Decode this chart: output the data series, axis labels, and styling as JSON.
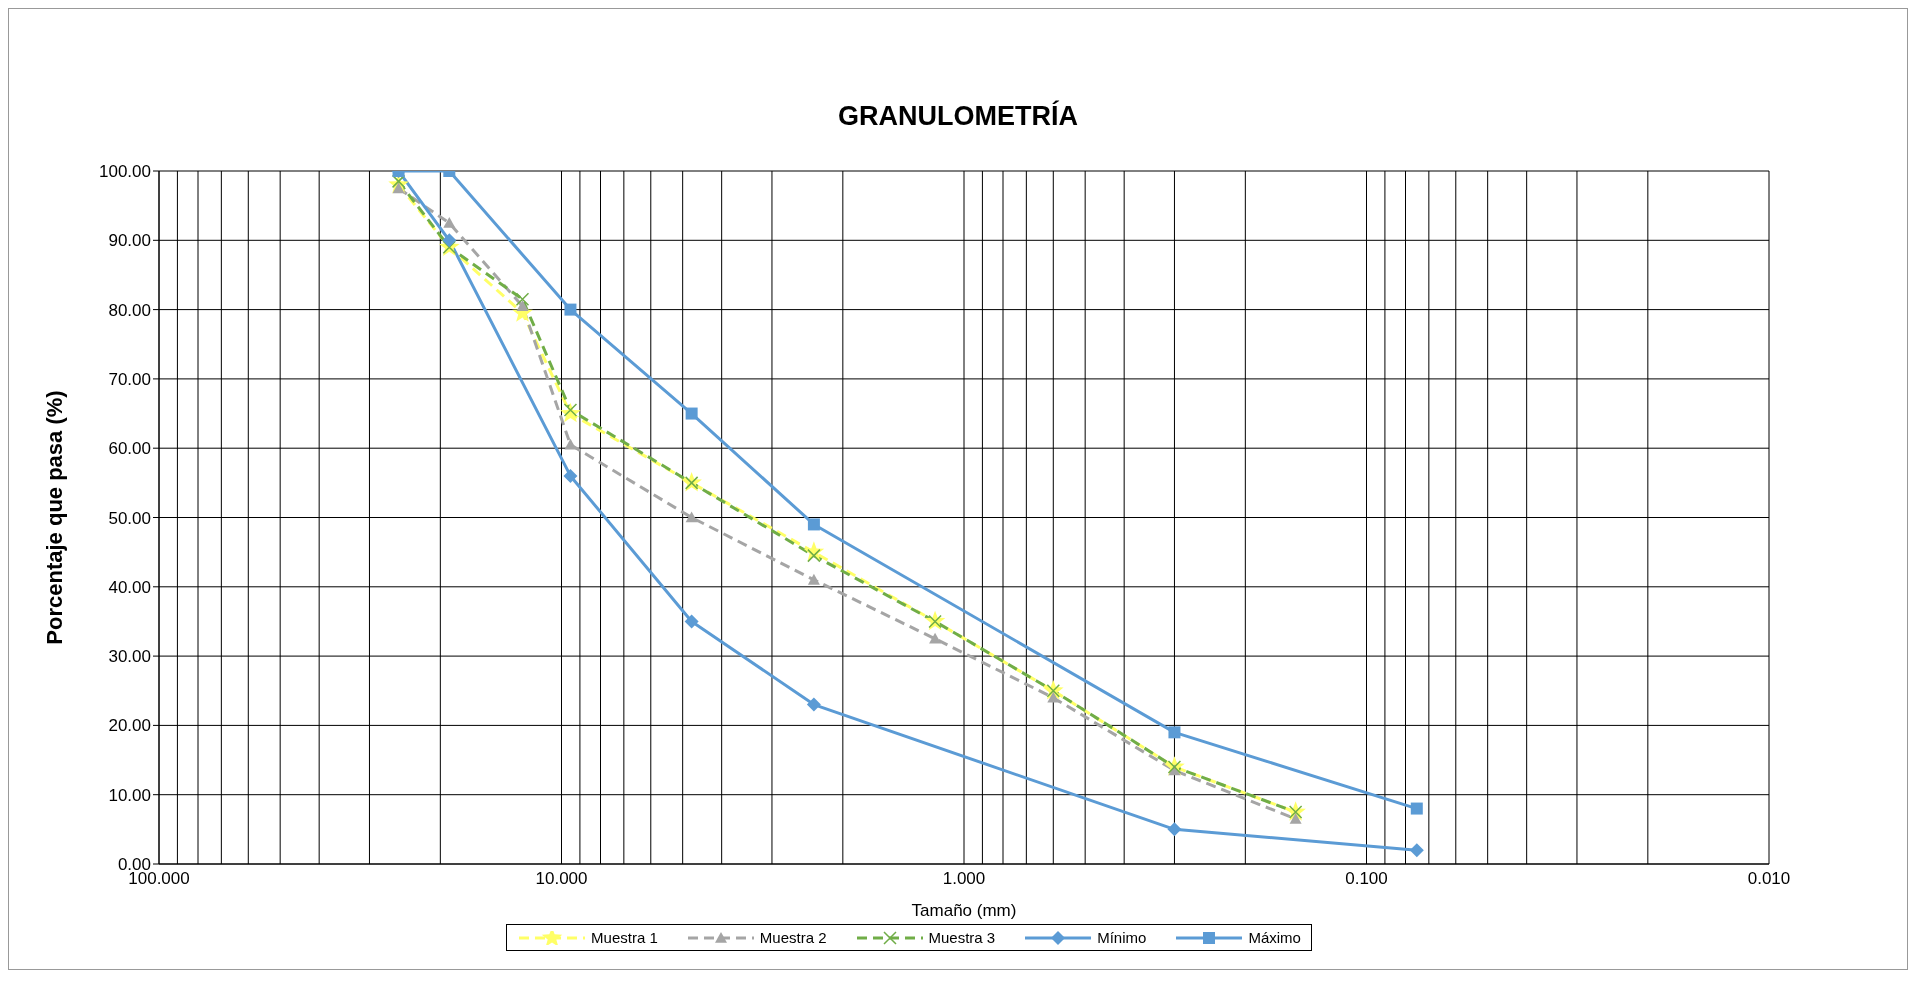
{
  "chart_data": {
    "type": "line",
    "title": "GRANULOMETRÍA",
    "xlabel": "Tamaño (mm)",
    "ylabel": "Porcentaje que pasa (%)",
    "log": "x",
    "xlim": [
      100,
      0.01
    ],
    "xticks": [
      {
        "value": 100,
        "label": "100.000"
      },
      {
        "value": 90,
        "label": null
      },
      {
        "value": 80,
        "label": null
      },
      {
        "value": 70,
        "label": null
      },
      {
        "value": 60,
        "label": null
      },
      {
        "value": 50,
        "label": null
      },
      {
        "value": 40,
        "label": null
      },
      {
        "value": 30,
        "label": null
      },
      {
        "value": 20,
        "label": null
      },
      {
        "value": 10,
        "label": "10.000"
      },
      {
        "value": 9,
        "label": null
      },
      {
        "value": 8,
        "label": null
      },
      {
        "value": 7,
        "label": null
      },
      {
        "value": 6,
        "label": null
      },
      {
        "value": 5,
        "label": null
      },
      {
        "value": 4,
        "label": null
      },
      {
        "value": 3,
        "label": null
      },
      {
        "value": 2,
        "label": null
      },
      {
        "value": 1,
        "label": "1.000"
      },
      {
        "value": 0.9,
        "label": null
      },
      {
        "value": 0.8,
        "label": null
      },
      {
        "value": 0.7,
        "label": null
      },
      {
        "value": 0.6,
        "label": null
      },
      {
        "value": 0.5,
        "label": null
      },
      {
        "value": 0.4,
        "label": null
      },
      {
        "value": 0.3,
        "label": null
      },
      {
        "value": 0.2,
        "label": null
      },
      {
        "value": 0.1,
        "label": "0.100"
      },
      {
        "value": 0.09,
        "label": null
      },
      {
        "value": 0.08,
        "label": null
      },
      {
        "value": 0.07,
        "label": null
      },
      {
        "value": 0.06,
        "label": null
      },
      {
        "value": 0.05,
        "label": null
      },
      {
        "value": 0.04,
        "label": null
      },
      {
        "value": 0.03,
        "label": null
      },
      {
        "value": 0.02,
        "label": null
      },
      {
        "value": 0.01,
        "label": "0.010"
      }
    ],
    "ylim": [
      0,
      100
    ],
    "yticks": [
      {
        "value": 0,
        "label": "0.00"
      },
      {
        "value": 10,
        "label": "10.00"
      },
      {
        "value": 20,
        "label": "20.00"
      },
      {
        "value": 30,
        "label": "30.00"
      },
      {
        "value": 40,
        "label": "40.00"
      },
      {
        "value": 50,
        "label": "50.00"
      },
      {
        "value": 60,
        "label": "60.00"
      },
      {
        "value": 70,
        "label": "70.00"
      },
      {
        "value": 80,
        "label": "80.00"
      },
      {
        "value": 90,
        "label": "90.00"
      },
      {
        "value": 100,
        "label": "100.00"
      }
    ],
    "grid": true,
    "legend": "bottom",
    "series": [
      {
        "name": "Muestra 1",
        "color": "#ffff66",
        "marker": "star",
        "line_style": "dashed",
        "x": [
          25.4,
          19.0,
          12.5,
          9.5,
          4.75,
          2.36,
          1.18,
          0.6,
          0.3,
          0.15
        ],
        "values": [
          98,
          89,
          79.5,
          65,
          55,
          45,
          35,
          25,
          14,
          7.5
        ]
      },
      {
        "name": "Muestra 2",
        "color": "#a5a5a5",
        "marker": "triangle",
        "line_style": "dashed",
        "x": [
          25.4,
          19.0,
          12.5,
          9.5,
          4.75,
          2.36,
          1.18,
          0.6,
          0.3,
          0.15
        ],
        "values": [
          97.5,
          92.5,
          80.5,
          60.5,
          50,
          41,
          32.5,
          24,
          13.5,
          6.5
        ]
      },
      {
        "name": "Muestra 3",
        "color": "#70ad47",
        "marker": "cross",
        "line_style": "dashed",
        "x": [
          25.4,
          19.0,
          12.5,
          9.5,
          4.75,
          2.36,
          1.18,
          0.6,
          0.3,
          0.15
        ],
        "values": [
          98.5,
          89,
          81.5,
          65.5,
          55,
          44.5,
          35,
          25,
          14,
          7.5
        ]
      },
      {
        "name": "Mínimo",
        "color": "#5b9bd5",
        "marker": "diamond",
        "line_style": "solid",
        "x": [
          25.4,
          19.0,
          9.5,
          4.75,
          2.36,
          0.3,
          0.075
        ],
        "values": [
          100,
          90,
          56,
          35,
          23,
          5,
          2
        ]
      },
      {
        "name": "Máximo",
        "color": "#5b9bd5",
        "marker": "square",
        "line_style": "solid",
        "x": [
          25.4,
          19.0,
          9.5,
          4.75,
          2.36,
          0.3,
          0.075
        ],
        "values": [
          100,
          100,
          80,
          65,
          49,
          19,
          8
        ]
      }
    ]
  }
}
